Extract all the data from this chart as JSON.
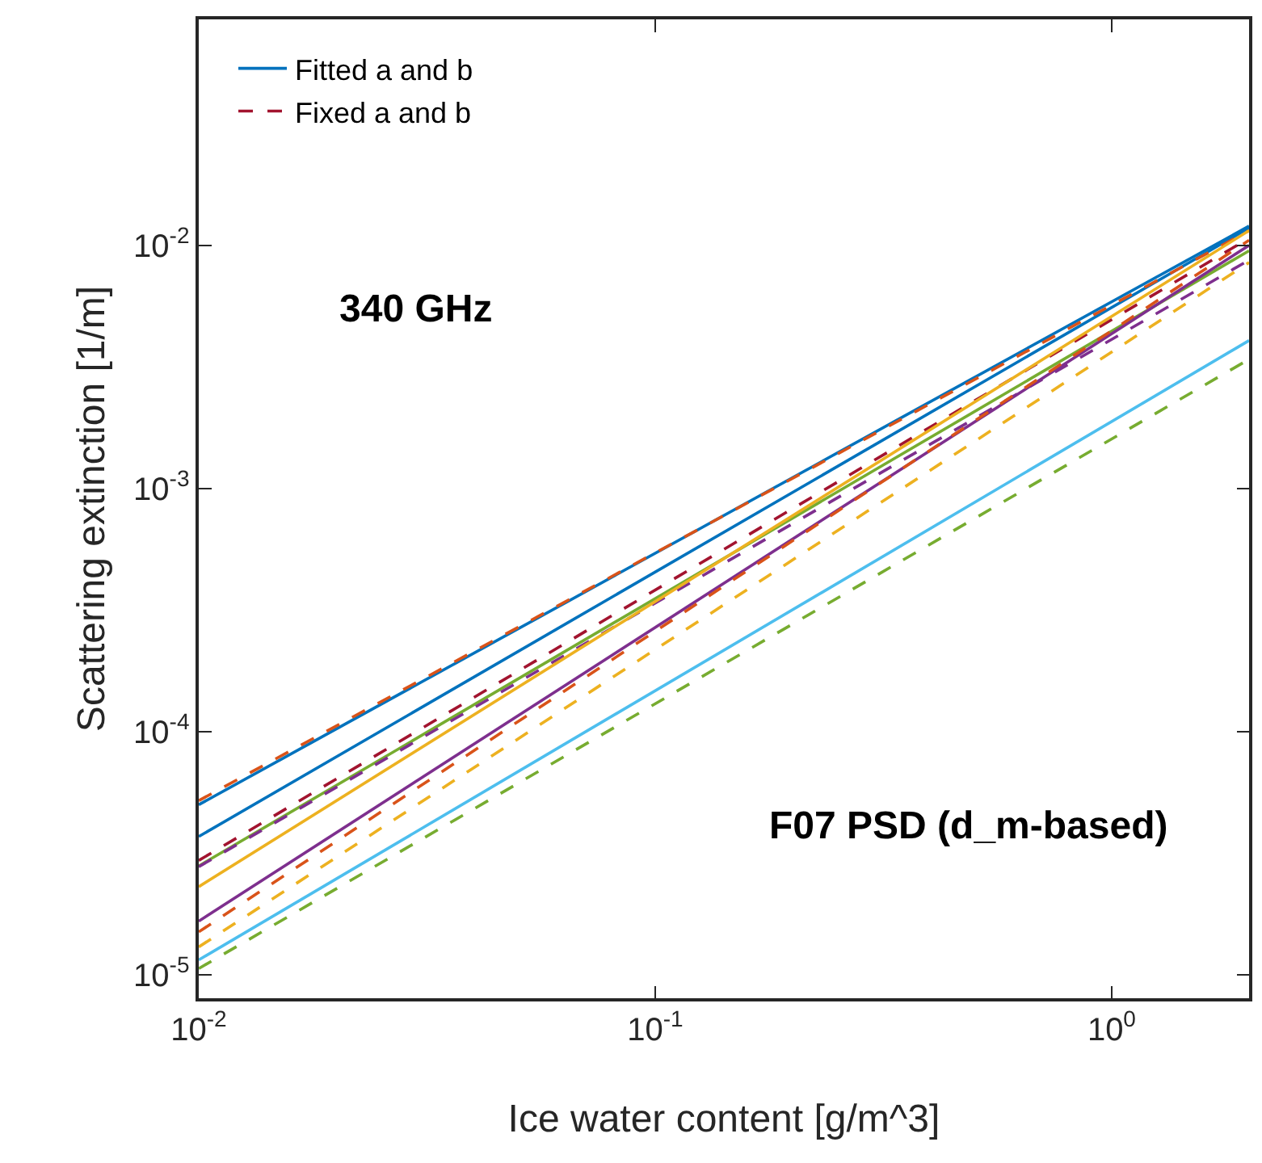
{
  "chart_data": {
    "type": "line",
    "xlabel": "Ice water content [g/m^3]",
    "ylabel": "Scattering extinction [1/m]",
    "x": [
      0.01,
      2
    ],
    "log": "xy",
    "grid": false,
    "legend": "top left",
    "marker": "none",
    "xlim": [
      0.01,
      2
    ],
    "ylim": [
      8e-06,
      0.085
    ],
    "xticks": [
      {
        "value": 0.01,
        "label": "10$^{-2}$"
      },
      {
        "value": 0.1,
        "label": "10$^{-1}$"
      },
      {
        "value": 1,
        "label": "10$^{0}$"
      }
    ],
    "yticks": [
      {
        "value": 1e-05,
        "label": "10$^{-5}$"
      },
      {
        "value": 0.0001,
        "label": "10$^{-4}$"
      },
      {
        "value": 0.001,
        "label": "10$^{-3}$"
      },
      {
        "value": 0.01,
        "label": "10$^{-2}$"
      }
    ],
    "annotations": [
      "340 GHz",
      "F07 PSD (d_m-based)"
    ],
    "series": [
      {
        "name": "Fitted a and b",
        "color": "#0072bd",
        "line_style": "solid",
        "values": [
          3.7e-05,
          0.0118
        ]
      },
      {
        "name": "Fixed a and b",
        "color": "#a2142f",
        "line_style": "dashed",
        "values": [
          2.95e-05,
          0.0107
        ]
      },
      {
        "color": "#0072bd",
        "line_style": "solid",
        "values": [
          5e-05,
          0.012
        ]
      },
      {
        "color": "#d95319",
        "line_style": "dashed",
        "values": [
          5.2e-05,
          0.0115
        ]
      },
      {
        "color": "#77ac30",
        "line_style": "solid",
        "values": [
          2.8e-05,
          0.0095
        ]
      },
      {
        "color": "#7e2f8e",
        "line_style": "dashed",
        "values": [
          2.78e-05,
          0.0087
        ]
      },
      {
        "color": "#edb120",
        "line_style": "solid",
        "values": [
          2.3e-05,
          0.0115
        ]
      },
      {
        "color": "#7e2f8e",
        "line_style": "solid",
        "values": [
          1.66e-05,
          0.01
        ]
      },
      {
        "color": "#d95319",
        "line_style": "dashed",
        "values": [
          1.5e-05,
          0.0105
        ]
      },
      {
        "color": "#edb120",
        "line_style": "dashed",
        "values": [
          1.3e-05,
          0.0085
        ]
      },
      {
        "color": "#4dbeee",
        "line_style": "solid",
        "values": [
          1.15e-05,
          0.00406
        ]
      },
      {
        "color": "#77ac30",
        "line_style": "dashed",
        "values": [
          1.06e-05,
          0.0034
        ]
      }
    ]
  }
}
